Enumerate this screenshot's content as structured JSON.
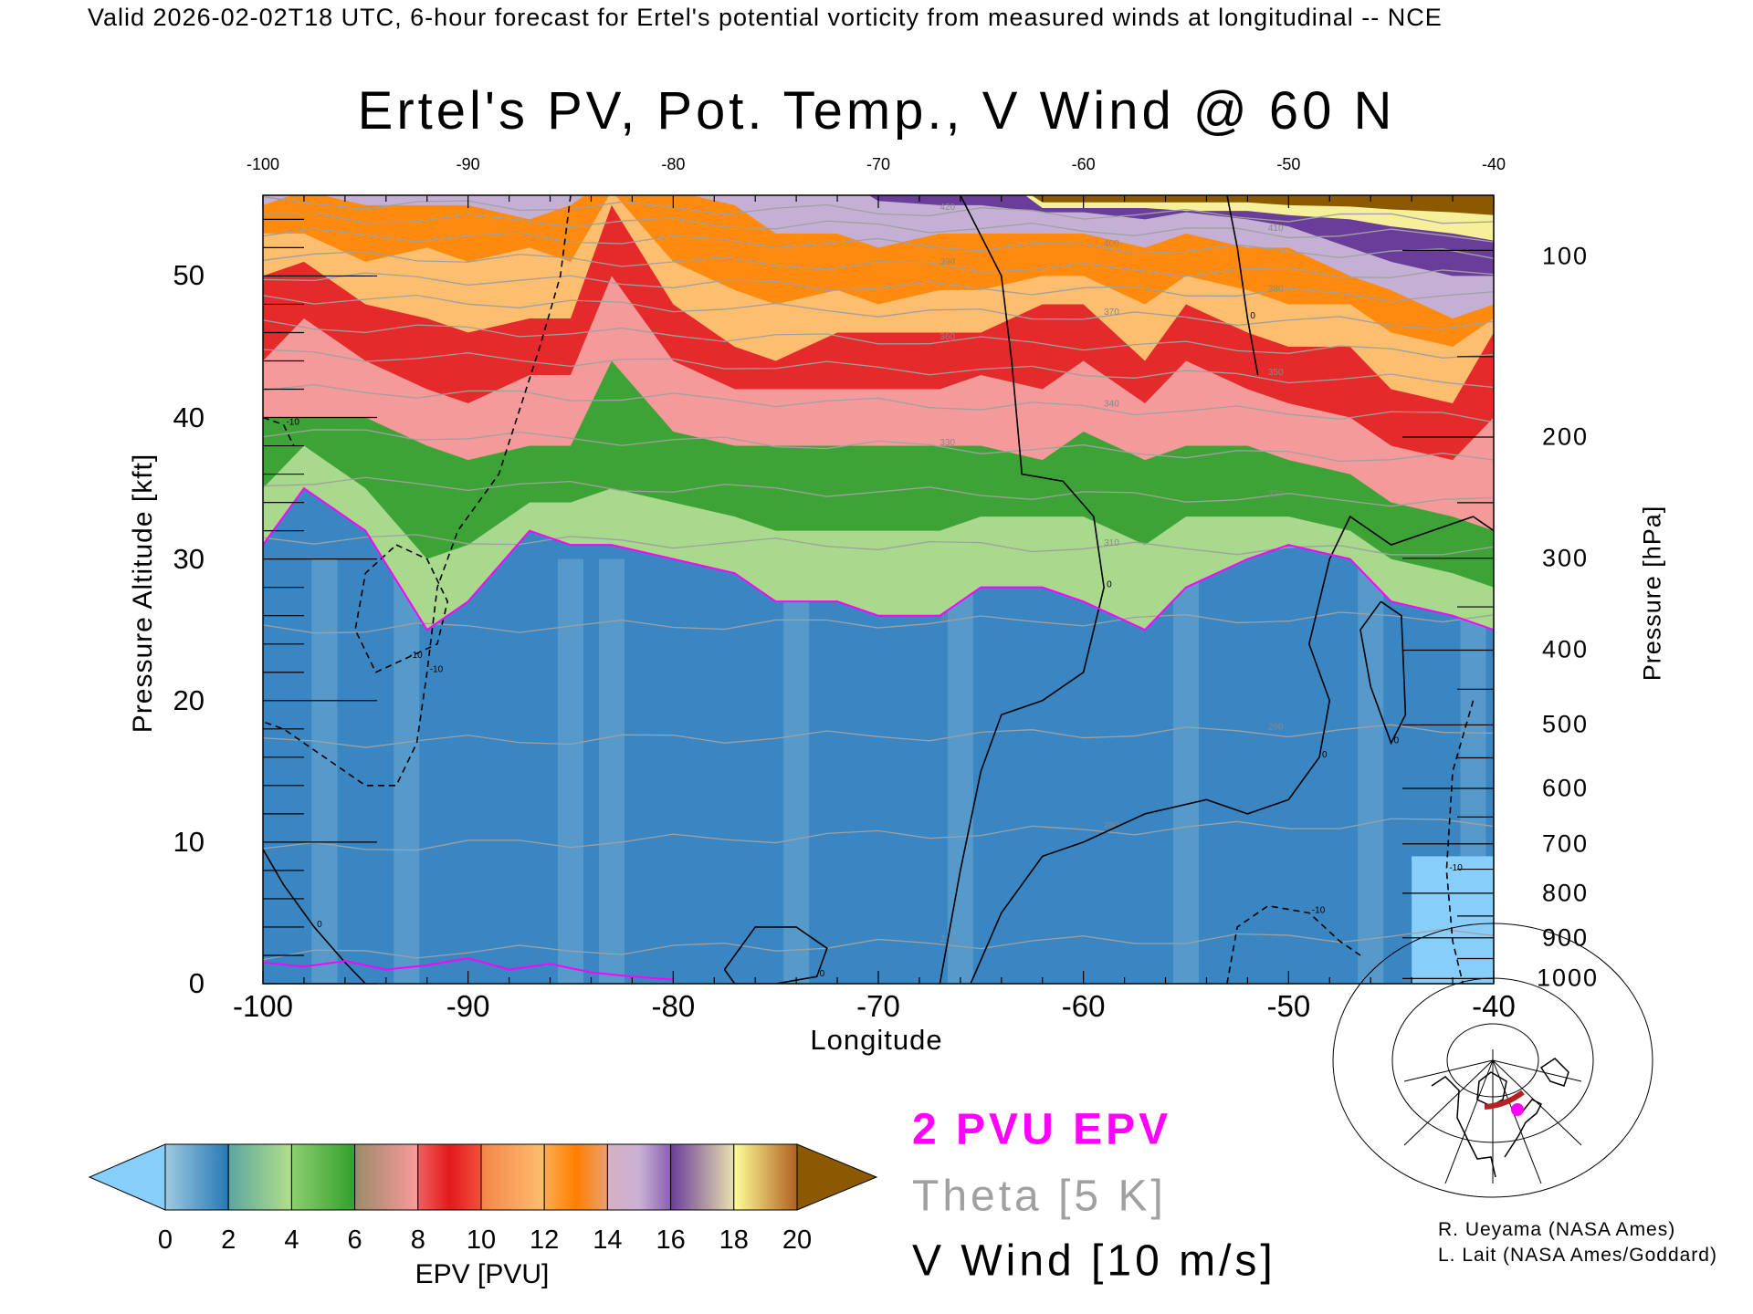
{
  "header": {
    "top_title": "Valid 2026-02-02T18 UTC, 6-hour forecast for Ertel's potential vorticity from measured winds at longitudinal -- NCE",
    "main_title": "Ertel's PV, Pot. Temp., V Wind @ 60 N"
  },
  "chart_data": {
    "type": "heatmap",
    "title": "Ertel's PV, Pot. Temp., V Wind @ 60 N",
    "xlabel": "Longitude",
    "ylabel": "Pressure Altitude [kft]",
    "ylabel_right": "Pressure [hPa]",
    "xlim": [
      -100,
      -40
    ],
    "ylim": [
      0,
      55.7
    ],
    "x_ticks": [
      "-100",
      "-90",
      "-80",
      "-70",
      "-60",
      "-50",
      "-40"
    ],
    "x_tick_values": [
      -100,
      -90,
      -80,
      -70,
      -60,
      -50,
      -40
    ],
    "y_ticks": [
      "0",
      "10",
      "20",
      "30",
      "40",
      "50"
    ],
    "y_tick_values": [
      0,
      10,
      20,
      30,
      40,
      50
    ],
    "pressure_ticks": [
      "100",
      "200",
      "300",
      "400",
      "500",
      "600",
      "700",
      "800",
      "900",
      "1000"
    ],
    "pressure_tick_values": [
      100,
      200,
      300,
      400,
      500,
      600,
      700,
      800,
      900,
      1000
    ],
    "epv_lon_samples": [
      -100,
      -98,
      -95,
      -92,
      -90,
      -87,
      -85,
      -83,
      -80,
      -77,
      -75,
      -72,
      -70,
      -67,
      -65,
      -62,
      -60,
      -57,
      -55,
      -52,
      -50,
      -47,
      -45,
      -42,
      -40
    ],
    "epv_isolines_kft": [
      {
        "pvu": 2,
        "kft": [
          31,
          35,
          32,
          25,
          27,
          32,
          31,
          31,
          30,
          29,
          27,
          27,
          26,
          26,
          28,
          28,
          27,
          25,
          28,
          30,
          31,
          30,
          27,
          26,
          25
        ]
      },
      {
        "pvu": 4,
        "kft": [
          35,
          38,
          35,
          30,
          31,
          34,
          34,
          35,
          34,
          33,
          32,
          32,
          32,
          32,
          33,
          33,
          33,
          31,
          33,
          33,
          33,
          32,
          30,
          29,
          28
        ]
      },
      {
        "pvu": 6,
        "kft": [
          40,
          40,
          40,
          38,
          37,
          38,
          38,
          44,
          39,
          38,
          38,
          38,
          38,
          38,
          38,
          37,
          39,
          37,
          38,
          38,
          37,
          36,
          34,
          33,
          32
        ]
      },
      {
        "pvu": 8,
        "kft": [
          44,
          47,
          44,
          42,
          41,
          43,
          43,
          50,
          44,
          42,
          42,
          42,
          42,
          42,
          43,
          42,
          44,
          41,
          44,
          42,
          41,
          40,
          38,
          37,
          40
        ]
      },
      {
        "pvu": 10,
        "kft": [
          50,
          51,
          48,
          47,
          46,
          47,
          47,
          55,
          48,
          45,
          44,
          46,
          46,
          46,
          46,
          48,
          48,
          44,
          48,
          46,
          45,
          45,
          42,
          41,
          46
        ]
      },
      {
        "pvu": 12,
        "kft": [
          53,
          53,
          51,
          52,
          51,
          52,
          51,
          56,
          51,
          49,
          48,
          49,
          48,
          49,
          49,
          50,
          50,
          48,
          50,
          49,
          48,
          48,
          46,
          45,
          47
        ]
      },
      {
        "pvu": 14,
        "kft": [
          55,
          56,
          55,
          55,
          55,
          54,
          55,
          57,
          56,
          55,
          53,
          53,
          52,
          53,
          53,
          53,
          53,
          52,
          53,
          52,
          52,
          50,
          49,
          47,
          48
        ]
      },
      {
        "pvu": 16,
        "kft": [
          57,
          57,
          57,
          57,
          57,
          57,
          56,
          57,
          57,
          57,
          56,
          57,
          55.3,
          55,
          55,
          54.5,
          54.5,
          54,
          54.5,
          54,
          53.5,
          52,
          51,
          50,
          50
        ]
      },
      {
        "pvu": 18,
        "kft": [
          58,
          58,
          58,
          58,
          58,
          58,
          58,
          58,
          58,
          58,
          58,
          58,
          58,
          58,
          58,
          54.8,
          54.8,
          54.8,
          54.6,
          54.6,
          54.3,
          54,
          53.5,
          53,
          52.5
        ]
      },
      {
        "pvu": 20,
        "kft": [
          58,
          58,
          58,
          58,
          58,
          58,
          58,
          58,
          58,
          58,
          58,
          58,
          58,
          58,
          58,
          55.2,
          55.2,
          55.2,
          55.2,
          55.2,
          55,
          54.9,
          54.7,
          54.5,
          54.3
        ]
      }
    ],
    "epv_surface_2pvu": {
      "lon": [
        -100,
        -98,
        -96,
        -94,
        -92,
        -90,
        -88,
        -86,
        -84,
        -82,
        -80
      ],
      "kft": [
        1.5,
        1.2,
        1.6,
        1.0,
        1.3,
        1.8,
        1.0,
        1.4,
        0.8,
        0.5,
        0.3
      ]
    },
    "theta_isentropes": [
      {
        "label": "270",
        "kft": [
          2.0,
          3.5
        ]
      },
      {
        "label": "280",
        "kft": [
          9.5,
          11.5
        ]
      },
      {
        "label": "290",
        "kft": [
          17.0,
          18.0
        ]
      },
      {
        "label": "300",
        "kft": [
          25.0,
          26.0
        ]
      },
      {
        "label": "310",
        "kft": [
          31.5,
          30.5
        ]
      },
      {
        "label": "320",
        "kft": [
          35.5,
          34.0
        ]
      },
      {
        "label": "330",
        "kft": [
          39.0,
          37.0
        ]
      },
      {
        "label": "340",
        "kft": [
          42.0,
          40.0
        ]
      },
      {
        "label": "350",
        "kft": [
          44.5,
          42.5
        ]
      },
      {
        "label": "360",
        "kft": [
          46.5,
          44.5
        ]
      },
      {
        "label": "370",
        "kft": [
          48.5,
          46.5
        ]
      },
      {
        "label": "380",
        "kft": [
          50.0,
          48.5
        ]
      },
      {
        "label": "390",
        "kft": [
          51.5,
          50.0
        ]
      },
      {
        "label": "400",
        "kft": [
          53.0,
          51.5
        ]
      },
      {
        "label": "410",
        "kft": [
          54.2,
          52.8
        ]
      },
      {
        "label": "420",
        "kft": [
          55.2,
          54.0
        ]
      }
    ],
    "v_wind_contours": [
      {
        "value": 0,
        "label": "0",
        "dashed": false,
        "lon": [
          -66,
          -64,
          -63.5,
          -63,
          -61,
          -59.5,
          -59,
          -60,
          -62,
          -64,
          -65,
          -66,
          -67
        ],
        "kft": [
          55.7,
          50,
          44,
          36,
          35.5,
          33,
          28,
          22,
          20,
          19,
          15,
          8,
          0
        ]
      },
      {
        "value": 0,
        "label": "0",
        "dashed": false,
        "lon": [
          -40,
          -41,
          -43,
          -45,
          -47,
          -48,
          -49,
          -48,
          -48.5,
          -50,
          -52,
          -54,
          -57,
          -60,
          -62,
          -64,
          -65.5
        ],
        "kft": [
          32,
          33,
          32,
          31,
          33,
          30,
          24,
          20,
          16,
          13,
          12,
          13,
          12,
          10,
          9,
          5,
          0
        ]
      },
      {
        "value": 0,
        "label": "0",
        "dashed": false,
        "lon": [
          -100,
          -99,
          -97.5,
          -96,
          -95
        ],
        "kft": [
          9.5,
          7,
          4,
          1.5,
          0
        ]
      },
      {
        "value": 0,
        "label": "0",
        "dashed": false,
        "lon": [
          -77.5,
          -76,
          -74,
          -72.5,
          -73,
          -75,
          -77,
          -77.5
        ],
        "kft": [
          1,
          4,
          4,
          2.5,
          0.5,
          0,
          0,
          1
        ]
      },
      {
        "value": 0,
        "label": "0",
        "dashed": false,
        "lon": [
          -45.5,
          -44.5,
          -44.3,
          -45,
          -46,
          -46.5,
          -45.5
        ],
        "kft": [
          27,
          26,
          19,
          17,
          21,
          25,
          27
        ]
      },
      {
        "value": 0,
        "label": "0",
        "dashed": false,
        "lon": [
          -53,
          -52.5,
          -52,
          -51.5
        ],
        "kft": [
          55.7,
          52,
          47,
          43
        ]
      },
      {
        "value": -10,
        "label": "-10",
        "dashed": true,
        "lon": [
          -85,
          -85.5,
          -86.5,
          -88.5,
          -90.5,
          -91.5,
          -92,
          -92.5,
          -93.5,
          -95,
          -97,
          -99,
          -100
        ],
        "kft": [
          55.7,
          50,
          45,
          36,
          32,
          28,
          22,
          17,
          14,
          14,
          16,
          18,
          18.5
        ]
      },
      {
        "value": -10,
        "label": "-10",
        "dashed": true,
        "lon": [
          -93.5,
          -92,
          -91,
          -91.5,
          -93,
          -94.5,
          -95.5,
          -95,
          -93.5
        ],
        "kft": [
          31,
          30,
          27,
          24,
          23,
          22,
          25,
          29,
          31
        ]
      },
      {
        "value": -10,
        "label": "-10",
        "dashed": true,
        "lon": [
          -100,
          -99,
          -98.5
        ],
        "kft": [
          40,
          39.5,
          38
        ]
      },
      {
        "value": -10,
        "label": "-10",
        "dashed": true,
        "lon": [
          -53,
          -52.5,
          -51,
          -49,
          -47.5,
          -46.5
        ],
        "kft": [
          0,
          4,
          5.5,
          5,
          3,
          2
        ]
      },
      {
        "value": -10,
        "label": "-10",
        "dashed": true,
        "lon": [
          -41,
          -42,
          -42.3,
          -42,
          -41.5
        ],
        "kft": [
          20,
          15,
          8,
          3,
          0
        ]
      }
    ],
    "colorbar": {
      "label": "EPV [PVU]",
      "ticks": [
        "0",
        "2",
        "4",
        "6",
        "8",
        "10",
        "12",
        "14",
        "16",
        "18",
        "20"
      ],
      "under_color": "#87cefa",
      "over_color": "#8b5a00",
      "segments": [
        [
          "#9ecae1",
          "#2878b4"
        ],
        [
          "#5ba6a0",
          "#b2df8a"
        ],
        [
          "#8ccf6e",
          "#33a02c"
        ],
        [
          "#9a8a6a",
          "#fb9a99"
        ],
        [
          "#f06060",
          "#e31a1c",
          "#f0503a"
        ],
        [
          "#f5844a",
          "#fdbf6f"
        ],
        [
          "#fdac50",
          "#ff7f00",
          "#e8a070"
        ],
        [
          "#d8b0c0",
          "#cab2d6",
          "#8a60b0"
        ],
        [
          "#6a3d9a",
          "#e8e0b0"
        ],
        [
          "#ffff99",
          "#b06020"
        ]
      ]
    },
    "band_colors": [
      "#3a86c2",
      "#a8d98c",
      "#3ea336",
      "#f59a9a",
      "#e42a2a",
      "#fdbf6f",
      "#ff8a10",
      "#c5b0d5",
      "#6a3d9a",
      "#f6f09a",
      "#8b5a00"
    ],
    "epv_2pvu_color": "#ff00ff",
    "theta_color": "#a0a0a0"
  },
  "legend": {
    "epv": "2 PVU EPV",
    "theta": "Theta [5 K]",
    "wind": "V Wind [10 m/s]"
  },
  "credits": {
    "line1": "R. Ueyama (NASA Ames)",
    "line2": "L. Lait (NASA Ames/Goddard)"
  }
}
